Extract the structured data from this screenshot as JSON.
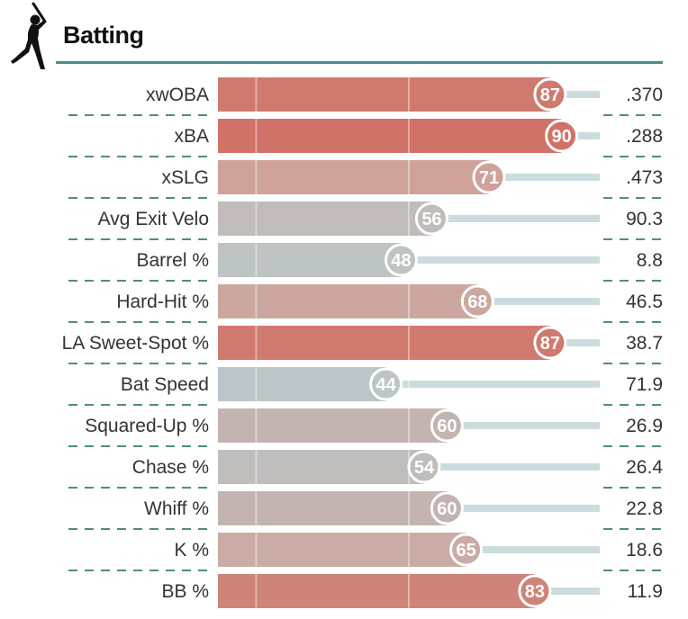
{
  "section": {
    "title": "Batting"
  },
  "colors": {
    "rule": "#4e8c89",
    "track": "#ccdcde",
    "dash": "#4e8c89",
    "scale": [
      "#7fb0c0",
      "#b9ced2",
      "#c0bdbc",
      "#cfa097",
      "#d0584c"
    ]
  },
  "chart_data": {
    "type": "bar",
    "orientation": "horizontal",
    "xlim": [
      0,
      100
    ],
    "categories": [
      "xwOBA",
      "xBA",
      "xSLG",
      "Avg Exit Velo",
      "Barrel %",
      "Hard-Hit %",
      "LA Sweet-Spot %",
      "Bat Speed",
      "Squared-Up %",
      "Chase %",
      "Whiff %",
      "K %",
      "BB %"
    ],
    "percentiles": [
      87,
      90,
      71,
      56,
      48,
      68,
      87,
      44,
      60,
      54,
      60,
      65,
      83
    ],
    "values": [
      ".370",
      ".288",
      ".473",
      "90.3",
      "8.8",
      "46.5",
      "38.7",
      "71.9",
      "26.9",
      "26.4",
      "22.8",
      "18.6",
      "11.9"
    ]
  }
}
